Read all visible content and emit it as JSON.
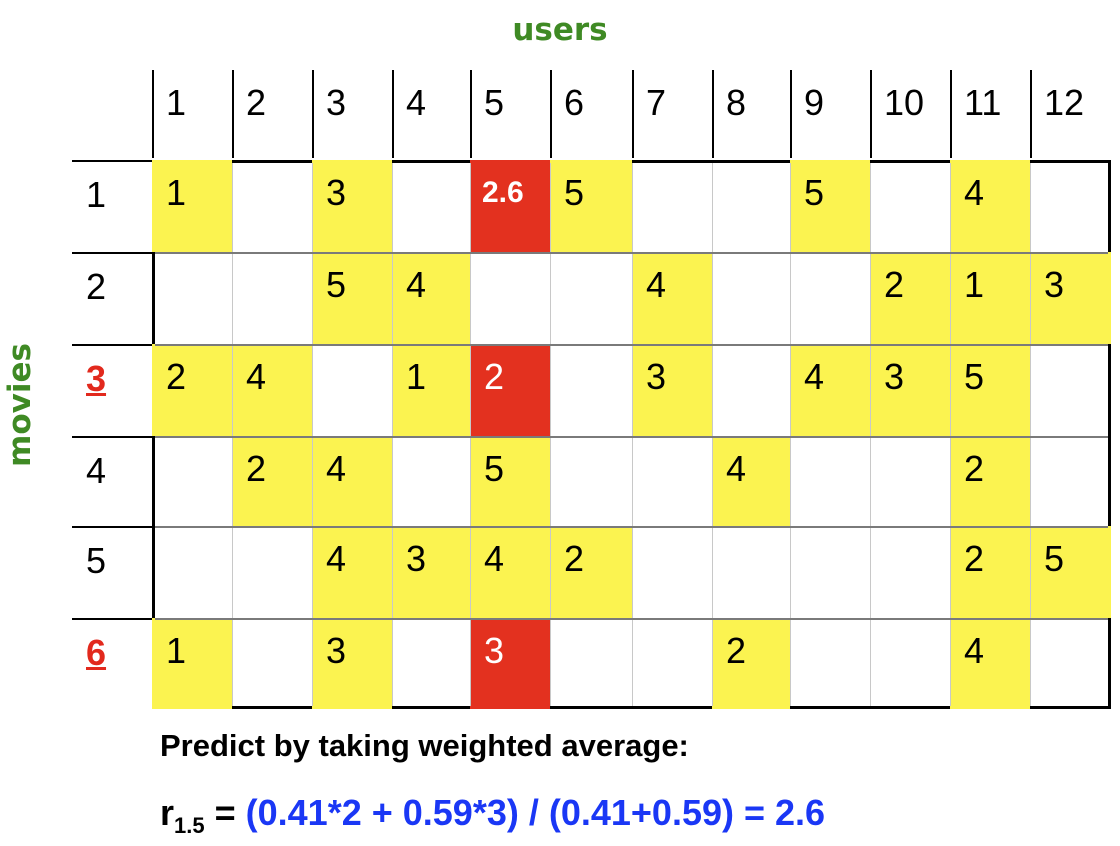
{
  "axes": {
    "users_label": "users",
    "movies_label": "movies"
  },
  "columns": [
    "1",
    "2",
    "3",
    "4",
    "5",
    "6",
    "7",
    "8",
    "9",
    "10",
    "11",
    "12"
  ],
  "rows": [
    {
      "label": "1",
      "highlight": false,
      "cells": [
        {
          "v": "1",
          "c": "y"
        },
        {
          "v": "",
          "c": "w"
        },
        {
          "v": "3",
          "c": "y"
        },
        {
          "v": "",
          "c": "w"
        },
        {
          "v": "2.6",
          "c": "r",
          "bold": true
        },
        {
          "v": "5",
          "c": "y"
        },
        {
          "v": "",
          "c": "w"
        },
        {
          "v": "",
          "c": "w"
        },
        {
          "v": "5",
          "c": "y"
        },
        {
          "v": "",
          "c": "w"
        },
        {
          "v": "4",
          "c": "y"
        },
        {
          "v": "",
          "c": "w"
        }
      ]
    },
    {
      "label": "2",
      "highlight": false,
      "cells": [
        {
          "v": "",
          "c": "w"
        },
        {
          "v": "",
          "c": "w"
        },
        {
          "v": "5",
          "c": "y"
        },
        {
          "v": "4",
          "c": "y"
        },
        {
          "v": "",
          "c": "w"
        },
        {
          "v": "",
          "c": "w"
        },
        {
          "v": "4",
          "c": "y"
        },
        {
          "v": "",
          "c": "w"
        },
        {
          "v": "",
          "c": "w"
        },
        {
          "v": "2",
          "c": "y"
        },
        {
          "v": "1",
          "c": "y"
        },
        {
          "v": "3",
          "c": "y"
        }
      ]
    },
    {
      "label": "3",
      "highlight": true,
      "cells": [
        {
          "v": "2",
          "c": "y"
        },
        {
          "v": "4",
          "c": "y"
        },
        {
          "v": "",
          "c": "w"
        },
        {
          "v": "1",
          "c": "y"
        },
        {
          "v": "2",
          "c": "r"
        },
        {
          "v": "",
          "c": "w"
        },
        {
          "v": "3",
          "c": "y"
        },
        {
          "v": "",
          "c": "w"
        },
        {
          "v": "4",
          "c": "y"
        },
        {
          "v": "3",
          "c": "y"
        },
        {
          "v": "5",
          "c": "y"
        },
        {
          "v": "",
          "c": "w"
        }
      ]
    },
    {
      "label": "4",
      "highlight": false,
      "cells": [
        {
          "v": "",
          "c": "w"
        },
        {
          "v": "2",
          "c": "y"
        },
        {
          "v": "4",
          "c": "y"
        },
        {
          "v": "",
          "c": "w"
        },
        {
          "v": "5",
          "c": "y"
        },
        {
          "v": "",
          "c": "w"
        },
        {
          "v": "",
          "c": "w"
        },
        {
          "v": "4",
          "c": "y"
        },
        {
          "v": "",
          "c": "w"
        },
        {
          "v": "",
          "c": "w"
        },
        {
          "v": "2",
          "c": "y"
        },
        {
          "v": "",
          "c": "w"
        }
      ]
    },
    {
      "label": "5",
      "highlight": false,
      "cells": [
        {
          "v": "",
          "c": "w"
        },
        {
          "v": "",
          "c": "w"
        },
        {
          "v": "4",
          "c": "y"
        },
        {
          "v": "3",
          "c": "y"
        },
        {
          "v": "4",
          "c": "y"
        },
        {
          "v": "2",
          "c": "y"
        },
        {
          "v": "",
          "c": "w"
        },
        {
          "v": "",
          "c": "w"
        },
        {
          "v": "",
          "c": "w"
        },
        {
          "v": "",
          "c": "w"
        },
        {
          "v": "2",
          "c": "y"
        },
        {
          "v": "5",
          "c": "y"
        }
      ]
    },
    {
      "label": "6",
      "highlight": true,
      "cells": [
        {
          "v": "1",
          "c": "y"
        },
        {
          "v": "",
          "c": "w"
        },
        {
          "v": "3",
          "c": "y"
        },
        {
          "v": "",
          "c": "w"
        },
        {
          "v": "3",
          "c": "r"
        },
        {
          "v": "",
          "c": "w"
        },
        {
          "v": "",
          "c": "w"
        },
        {
          "v": "2",
          "c": "y"
        },
        {
          "v": "",
          "c": "w"
        },
        {
          "v": "",
          "c": "w"
        },
        {
          "v": "4",
          "c": "y"
        },
        {
          "v": "",
          "c": "w"
        }
      ]
    }
  ],
  "colors": {
    "yellow": "#fbf350",
    "red": "#e3311f",
    "green": "#3f8a24",
    "blue": "#1a37f5"
  },
  "caption": "Predict by taking weighted average:",
  "formula": {
    "lhs_base": "r",
    "lhs_sub": "1.5",
    "lhs_eq": " = ",
    "rhs": "(0.41*2 + 0.59*3) / (0.41+0.59) = 2.6"
  }
}
